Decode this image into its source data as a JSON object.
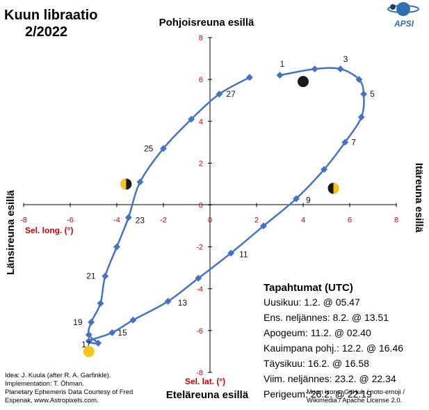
{
  "title": {
    "line1": "Kuun libraatio",
    "line2": "2/2022"
  },
  "logo": {
    "text": "APSI",
    "icon": "apsi-planet-logo"
  },
  "edge_labels": {
    "top": "Pohjoisreuna esillä",
    "bottom": "Eteläreuna esillä",
    "left": "Länsireuna esillä",
    "right": "Itäreuna esillä"
  },
  "events": {
    "title": "Tapahtumat (UTC)",
    "items": [
      "Uusikuu: 1.2. @ 05.47",
      "Ens. neljännes: 8.2. @ 13.51",
      "Apogeum: 11.2. @ 02.40",
      "Kauimpana pohj.: 12.2. @ 16.46",
      "Täysikuu: 16.2. @ 16.58",
      "Viim. neljännes: 23.2. @ 22.34",
      "Perigeum: 26.2. @ 22.19"
    ]
  },
  "credits_left": [
    "Idea: J. Kuula (after R.  A. Garfinkle).",
    "Implementation: T. Öhman.",
    "Planetary Ephemeris Data Courtesy of Fred",
    "Espenak, www.Astropixels.com."
  ],
  "credits_right": [
    "Moon icons:  GitHub / noto-emoji /",
    "Wikimedia / Apache License 2.0."
  ],
  "colors": {
    "series": "#4472C4",
    "axis_text": "#d00000",
    "moon_dark": "#1a1a1a",
    "moon_light": "#f5c518"
  },
  "chart_data": {
    "type": "line",
    "xlabel": "Sel. long. (°)",
    "ylabel": "Sel. lat. (°)",
    "xlim": [
      -8,
      8
    ],
    "ylim": [
      -8,
      8
    ],
    "xticks": [
      -8,
      -6,
      -4,
      -2,
      0,
      2,
      4,
      6,
      8
    ],
    "yticks": [
      -8,
      -6,
      -4,
      -2,
      0,
      2,
      4,
      6,
      8
    ],
    "grid": false,
    "series": [
      {
        "days": [
          1,
          2,
          3,
          4,
          5,
          6,
          7,
          8,
          9,
          10,
          11,
          12,
          13,
          14,
          15,
          16,
          17,
          18,
          19,
          20,
          21,
          22,
          23,
          24,
          25,
          26,
          27,
          28
        ],
        "x": [
          3.0,
          4.5,
          5.6,
          6.4,
          6.6,
          6.5,
          5.8,
          4.9,
          3.7,
          2.3,
          0.9,
          -0.5,
          -1.8,
          -3.3,
          -4.2,
          -5.2,
          -4.8,
          -5.2,
          -5.1,
          -4.7,
          -4.5,
          -4.0,
          -3.5,
          -3.0,
          -2.0,
          -0.8,
          0.4,
          1.7
        ],
        "y": [
          6.2,
          6.5,
          6.5,
          6.0,
          5.3,
          4.2,
          3.0,
          1.7,
          0.3,
          -1.0,
          -2.3,
          -3.5,
          -4.6,
          -5.5,
          -6.1,
          -6.5,
          -6.6,
          -6.2,
          -5.6,
          -4.7,
          -3.4,
          -2.0,
          -0.6,
          1.1,
          2.7,
          4.1,
          5.3,
          6.1
        ]
      }
    ],
    "point_labels": [
      {
        "day": 1,
        "text": "1"
      },
      {
        "day": 3,
        "text": "3"
      },
      {
        "day": 5,
        "text": "5"
      },
      {
        "day": 7,
        "text": "7"
      },
      {
        "day": 9,
        "text": "9"
      },
      {
        "day": 11,
        "text": "11"
      },
      {
        "day": 13,
        "text": "13"
      },
      {
        "day": 15,
        "text": "15"
      },
      {
        "day": 17,
        "text": "17"
      },
      {
        "day": 19,
        "text": "19"
      },
      {
        "day": 21,
        "text": "21"
      },
      {
        "day": 23,
        "text": "23"
      },
      {
        "day": 25,
        "text": "25"
      },
      {
        "day": 27,
        "text": "27"
      }
    ],
    "moon_icons": [
      {
        "phase": "new-moon",
        "x": 4.0,
        "y": 5.9
      },
      {
        "phase": "first-quarter",
        "x": 5.3,
        "y": 0.8
      },
      {
        "phase": "full-moon",
        "x": -5.2,
        "y": -7.0
      },
      {
        "phase": "last-quarter",
        "x": -3.6,
        "y": 1.0
      }
    ]
  }
}
